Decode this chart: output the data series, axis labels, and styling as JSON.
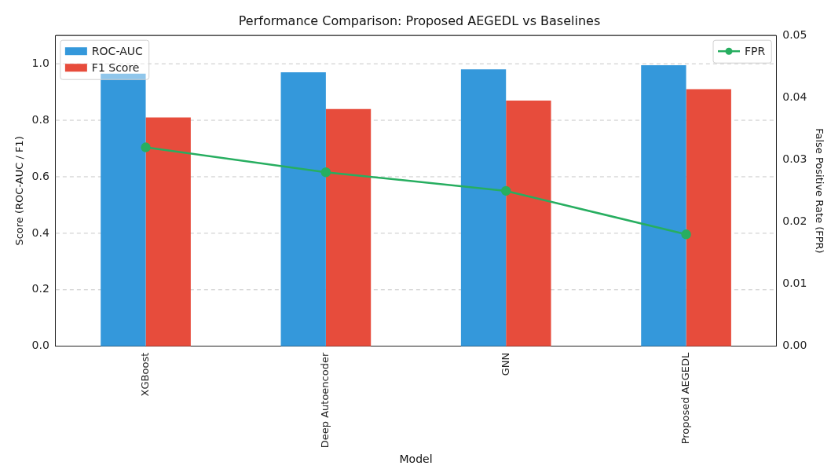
{
  "chart_data": {
    "type": "bar",
    "title": "Performance Comparison: Proposed AEGEDL vs Baselines",
    "xlabel": "Model",
    "ylabel": "Score (ROC-AUC / F1)",
    "y2label": "False Positive Rate (FPR)",
    "categories": [
      "XGBoost",
      "Deep Autoencoder",
      "GNN",
      "Proposed AEGEDL"
    ],
    "series": [
      {
        "name": "ROC-AUC",
        "color": "#3498db",
        "values": [
          0.965,
          0.97,
          0.98,
          0.995
        ]
      },
      {
        "name": "F1 Score",
        "color": "#e74c3c",
        "values": [
          0.81,
          0.84,
          0.87,
          0.91
        ]
      },
      {
        "name": "FPR",
        "type": "line",
        "axis": "y2",
        "color": "#27ae60",
        "values": [
          0.032,
          0.028,
          0.025,
          0.018
        ]
      }
    ],
    "ylim": [
      0,
      1.1
    ],
    "yticks": [
      {
        "value": 0,
        "label": "0.0"
      },
      {
        "value": 0.2,
        "label": "0.2"
      },
      {
        "value": 0.4,
        "label": "0.4"
      },
      {
        "value": 0.6,
        "label": "0.6"
      },
      {
        "value": 0.8,
        "label": "0.8"
      },
      {
        "value": 1,
        "label": "1.0"
      }
    ],
    "y2lim": [
      0,
      0.05
    ],
    "y2ticks": [
      {
        "value": 0,
        "label": "0.00"
      },
      {
        "value": 0.01,
        "label": "0.01"
      },
      {
        "value": 0.02,
        "label": "0.02"
      },
      {
        "value": 0.03,
        "label": "0.03"
      },
      {
        "value": 0.04,
        "label": "0.04"
      },
      {
        "value": 0.05,
        "label": "0.05"
      }
    ],
    "grid": "y",
    "legend": "top",
    "marker": "circle",
    "line_style": "solid"
  }
}
